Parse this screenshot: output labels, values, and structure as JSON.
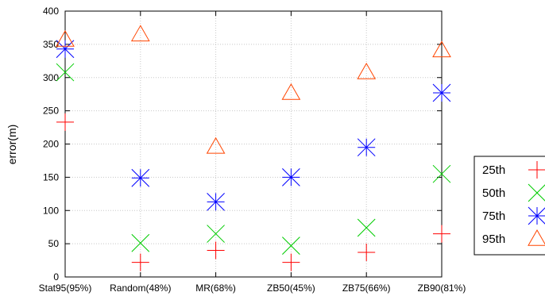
{
  "chart_data": {
    "type": "scatter",
    "categories": [
      "Stat95(95%)",
      "Random(48%)",
      "MR(68%)",
      "ZB50(45%)",
      "ZB75(66%)",
      "ZB90(81%)"
    ],
    "ylabel": "error(m)",
    "xlabel": "",
    "ylim": [
      0,
      400
    ],
    "yticks": [
      "0",
      "50",
      "100",
      "150",
      "200",
      "250",
      "300",
      "350",
      "400"
    ],
    "grid": true,
    "legend_position": "right",
    "series": [
      {
        "name": "25th",
        "marker": "plus",
        "color": "#ff0000",
        "values": [
          233,
          22,
          40,
          22,
          37,
          65
        ]
      },
      {
        "name": "50th",
        "marker": "cross",
        "color": "#00cc00",
        "values": [
          308,
          51,
          65,
          47,
          74,
          155
        ]
      },
      {
        "name": "75th",
        "marker": "star",
        "color": "#0000ff",
        "values": [
          343,
          149,
          113,
          150,
          195,
          277
        ]
      },
      {
        "name": "95th",
        "marker": "triangle",
        "color": "#ff4500",
        "values": [
          357,
          365,
          196,
          277,
          308,
          341
        ]
      }
    ]
  }
}
